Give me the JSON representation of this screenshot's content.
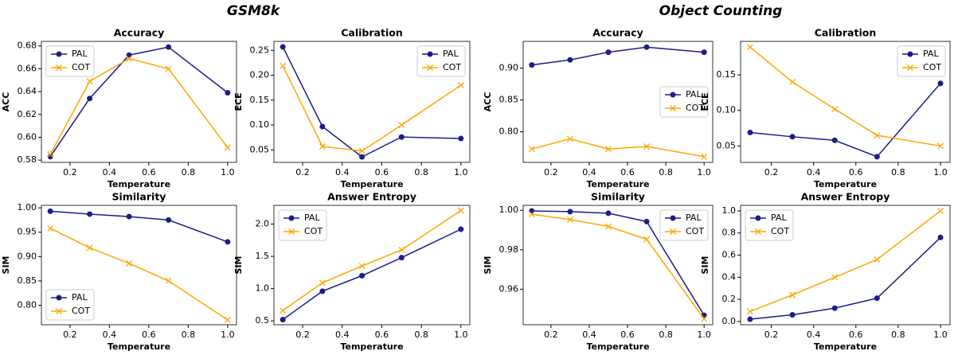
{
  "group_titles": [
    "GSM8k",
    "Object Counting"
  ],
  "chart_data": [
    {
      "type": "line",
      "title": "Accuracy",
      "xlabel": "Temperature",
      "ylabel": "ACC",
      "legend": "upper left",
      "x": [
        0.1,
        0.3,
        0.5,
        0.7,
        1.0
      ],
      "xlim": [
        0.055,
        1.045
      ],
      "xticks": [
        0.2,
        0.4,
        0.6,
        0.8,
        {
          "value": 1,
          "label": "1.0"
        }
      ],
      "ylim": [
        0.578,
        0.684
      ],
      "yticks": [
        0.58,
        {
          "value": 0.6,
          "label": "0.60"
        },
        0.62,
        0.64,
        0.66,
        0.68
      ],
      "series": [
        {
          "name": "PAL",
          "color": "#1c1c8c",
          "marker": "o",
          "values": [
            0.583,
            0.634,
            0.672,
            0.679,
            0.639
          ]
        },
        {
          "name": "COT",
          "color": "#ffa500",
          "marker": "x",
          "values": [
            0.585,
            0.649,
            0.669,
            0.66,
            0.591
          ]
        }
      ]
    },
    {
      "type": "line",
      "title": "Calibration",
      "xlabel": "Temperature",
      "ylabel": "ECE",
      "legend": "upper right",
      "x": [
        0.1,
        0.3,
        0.5,
        0.7,
        1.0
      ],
      "xlim": [
        0.055,
        1.045
      ],
      "xticks": [
        0.2,
        0.4,
        0.6,
        0.8,
        {
          "value": 1,
          "label": "1.0"
        }
      ],
      "ylim": [
        0.025,
        0.268
      ],
      "yticks": [
        0.05,
        {
          "value": 0.1,
          "label": "0.10"
        },
        0.15,
        {
          "value": 0.2,
          "label": "0.20"
        },
        0.25
      ],
      "series": [
        {
          "name": "PAL",
          "color": "#1c1c8c",
          "marker": "o",
          "values": [
            0.257,
            0.097,
            0.036,
            0.076,
            0.073
          ]
        },
        {
          "name": "COT",
          "color": "#ffa500",
          "marker": "x",
          "values": [
            0.219,
            0.057,
            0.048,
            0.1,
            0.18
          ]
        }
      ]
    },
    {
      "type": "line",
      "title": "Accuracy",
      "xlabel": "Temperature",
      "ylabel": "ACC",
      "legend": "center right",
      "x": [
        0.1,
        0.3,
        0.5,
        0.7,
        1.0
      ],
      "xlim": [
        0.055,
        1.045
      ],
      "xticks": [
        0.2,
        0.4,
        0.6,
        0.8,
        {
          "value": 1,
          "label": "1.0"
        }
      ],
      "ylim": [
        0.752,
        0.942
      ],
      "yticks": [
        {
          "value": 0.8,
          "label": "0.80"
        },
        0.85,
        {
          "value": 0.9,
          "label": "0.90"
        }
      ],
      "series": [
        {
          "name": "PAL",
          "color": "#1c1c8c",
          "marker": "o",
          "values": [
            0.905,
            0.913,
            0.925,
            0.933,
            0.925
          ]
        },
        {
          "name": "COT",
          "color": "#ffa500",
          "marker": "x",
          "values": [
            0.773,
            0.789,
            0.773,
            0.777,
            0.761
          ]
        }
      ]
    },
    {
      "type": "line",
      "title": "Calibration",
      "xlabel": "Temperature",
      "ylabel": "ECE",
      "legend": "upper right",
      "x": [
        0.1,
        0.3,
        0.5,
        0.7,
        1.0
      ],
      "xlim": [
        0.055,
        1.045
      ],
      "xticks": [
        0.2,
        0.4,
        0.6,
        0.8,
        {
          "value": 1,
          "label": "1.0"
        }
      ],
      "ylim": [
        0.027,
        0.197
      ],
      "yticks": [
        0.05,
        {
          "value": 0.1,
          "label": "0.10"
        },
        0.15
      ],
      "series": [
        {
          "name": "PAL",
          "color": "#1c1c8c",
          "marker": "o",
          "values": [
            0.069,
            0.063,
            0.058,
            0.035,
            0.138
          ]
        },
        {
          "name": "COT",
          "color": "#ffa500",
          "marker": "x",
          "values": [
            0.189,
            0.14,
            0.102,
            0.065,
            0.05
          ]
        }
      ]
    },
    {
      "type": "line",
      "title": "Similarity",
      "xlabel": "Temperature",
      "ylabel": "SIM",
      "legend": "lower left",
      "x": [
        0.1,
        0.3,
        0.5,
        0.7,
        1.0
      ],
      "xlim": [
        0.055,
        1.045
      ],
      "xticks": [
        0.2,
        0.4,
        0.6,
        0.8,
        {
          "value": 1,
          "label": "1.0"
        }
      ],
      "ylim": [
        0.76,
        1.005
      ],
      "yticks": [
        {
          "value": 0.8,
          "label": "0.80"
        },
        0.85,
        {
          "value": 0.9,
          "label": "0.90"
        },
        0.95,
        {
          "value": 1,
          "label": "1.00"
        }
      ],
      "series": [
        {
          "name": "PAL",
          "color": "#1c1c8c",
          "marker": "o",
          "values": [
            0.993,
            0.987,
            0.982,
            0.975,
            0.93
          ]
        },
        {
          "name": "COT",
          "color": "#ffa500",
          "marker": "x",
          "values": [
            0.958,
            0.918,
            0.886,
            0.85,
            0.77
          ]
        }
      ]
    },
    {
      "type": "line",
      "title": "Answer Entropy",
      "xlabel": "Temperature",
      "ylabel": "SIM",
      "legend": "upper left",
      "x": [
        0.1,
        0.3,
        0.5,
        0.7,
        1.0
      ],
      "xlim": [
        0.055,
        1.045
      ],
      "xticks": [
        0.2,
        0.4,
        0.6,
        0.8,
        {
          "value": 1,
          "label": "1.0"
        }
      ],
      "ylim": [
        0.44,
        2.29
      ],
      "yticks": [
        0.5,
        {
          "value": 1,
          "label": "1.0"
        },
        1.5,
        {
          "value": 2,
          "label": "2.0"
        }
      ],
      "series": [
        {
          "name": "PAL",
          "color": "#1c1c8c",
          "marker": "o",
          "values": [
            0.52,
            0.96,
            1.2,
            1.48,
            1.92
          ]
        },
        {
          "name": "COT",
          "color": "#ffa500",
          "marker": "x",
          "values": [
            0.66,
            1.09,
            1.35,
            1.6,
            2.21
          ]
        }
      ]
    },
    {
      "type": "line",
      "title": "Similarity",
      "xlabel": "Temperature",
      "ylabel": "SIM",
      "legend": "upper right",
      "x": [
        0.1,
        0.3,
        0.5,
        0.7,
        1.0
      ],
      "xlim": [
        0.055,
        1.045
      ],
      "xticks": [
        0.2,
        0.4,
        0.6,
        0.8,
        {
          "value": 1,
          "label": "1.0"
        }
      ],
      "ylim": [
        0.942,
        1.0025
      ],
      "yticks": [
        0.96,
        0.98,
        {
          "value": 1,
          "label": "1.00"
        }
      ],
      "series": [
        {
          "name": "PAL",
          "color": "#1c1c8c",
          "marker": "o",
          "values": [
            0.9997,
            0.9993,
            0.9985,
            0.9943,
            0.9468
          ]
        },
        {
          "name": "COT",
          "color": "#ffa500",
          "marker": "x",
          "values": [
            0.998,
            0.9953,
            0.9918,
            0.9853,
            0.945
          ]
        }
      ]
    },
    {
      "type": "line",
      "title": "Answer Entropy",
      "xlabel": "Temperature",
      "ylabel": "SIM",
      "legend": "upper left",
      "x": [
        0.1,
        0.3,
        0.5,
        0.7,
        1.0
      ],
      "xlim": [
        0.055,
        1.045
      ],
      "xticks": [
        0.2,
        0.4,
        0.6,
        0.8,
        {
          "value": 1,
          "label": "1.0"
        }
      ],
      "ylim": [
        -0.03,
        1.05
      ],
      "yticks": [
        {
          "value": 0,
          "label": "0.0"
        },
        0.2,
        0.4,
        0.6,
        0.8,
        {
          "value": 1,
          "label": "1.0"
        }
      ],
      "series": [
        {
          "name": "PAL",
          "color": "#1c1c8c",
          "marker": "o",
          "values": [
            0.02,
            0.06,
            0.12,
            0.21,
            0.76
          ]
        },
        {
          "name": "COT",
          "color": "#ffa500",
          "marker": "x",
          "values": [
            0.09,
            0.24,
            0.4,
            0.56,
            1.0
          ]
        }
      ]
    }
  ]
}
